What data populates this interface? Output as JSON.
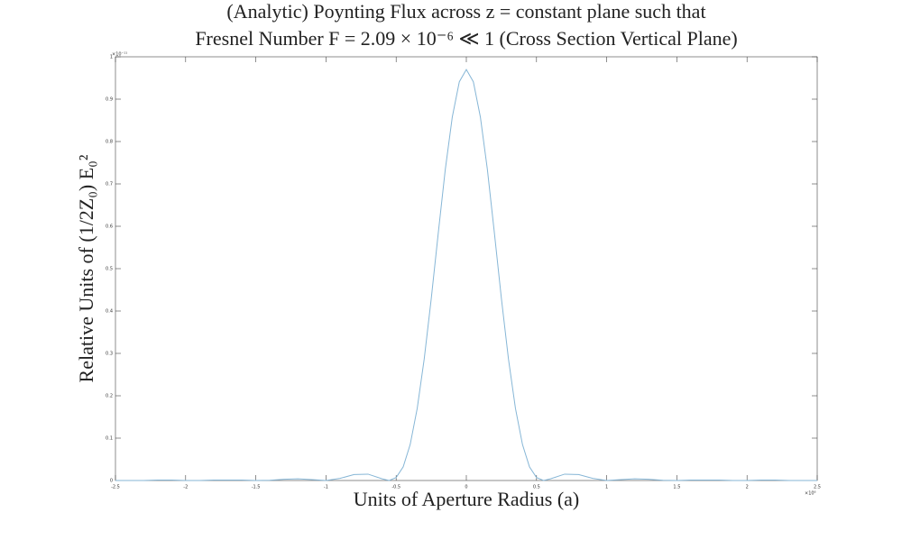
{
  "chart_data": {
    "type": "line",
    "title": [
      "(Analytic) Poynting Flux across z = constant plane such that",
      "Fresnel Number F = 2.09 × 10⁻⁶ ≪ 1 (Cross Section Vertical Plane)"
    ],
    "x_label": "Units of Aperture Radius (a)",
    "y_label": "Relative Units of (1/2Z₀) E₀²",
    "x_exponent": "×10⁶",
    "y_exponent": "×10⁻¹¹",
    "x": [
      -2.5,
      -2.4,
      -2.3,
      -2.2,
      -2.1,
      -2.0,
      -1.9,
      -1.8,
      -1.7,
      -1.6,
      -1.5,
      -1.4,
      -1.3,
      -1.2,
      -1.1,
      -1.0,
      -0.9,
      -0.8,
      -0.7,
      -0.6,
      -0.55,
      -0.5,
      -0.45,
      -0.4,
      -0.35,
      -0.3,
      -0.25,
      -0.2,
      -0.15,
      -0.1,
      -0.05,
      0,
      0.05,
      0.1,
      0.15,
      0.2,
      0.25,
      0.3,
      0.35,
      0.4,
      0.45,
      0.5,
      0.55,
      0.6,
      0.7,
      0.8,
      0.9,
      1.0,
      1.1,
      1.2,
      1.3,
      1.4,
      1.5,
      1.6,
      1.7,
      1.8,
      1.9,
      2.0,
      2.1,
      2.2,
      2.3,
      2.4,
      2.5
    ],
    "series": [
      {
        "color": "#86b6d6",
        "values": [
          0,
          0,
          0,
          0.001,
          0.001,
          0,
          0,
          0.001,
          0.001,
          0.001,
          0,
          0.0004,
          0.003,
          0.004,
          0.002,
          0,
          0.005,
          0.014,
          0.015,
          0.004,
          0,
          0.007,
          0.032,
          0.085,
          0.17,
          0.287,
          0.429,
          0.584,
          0.734,
          0.858,
          0.941,
          0.97,
          0.941,
          0.858,
          0.734,
          0.584,
          0.429,
          0.287,
          0.17,
          0.085,
          0.032,
          0.007,
          0,
          0.004,
          0.015,
          0.014,
          0.005,
          0,
          0.002,
          0.004,
          0.003,
          0.0004,
          0,
          0.001,
          0.001,
          0.001,
          0,
          0,
          0.001,
          0.001,
          0,
          0,
          0
        ]
      }
    ],
    "xlim": [
      -2.5,
      2.5
    ],
    "ylim": [
      0,
      1
    ],
    "xticks": [
      -2.5,
      -2,
      -1.5,
      -1,
      -0.5,
      0,
      0.5,
      1,
      1.5,
      2,
      2.5
    ],
    "yticks": [
      0,
      0.1,
      0.2,
      0.3,
      0.4,
      0.5,
      0.6,
      0.7,
      0.8,
      0.9,
      1
    ],
    "grid": false
  }
}
